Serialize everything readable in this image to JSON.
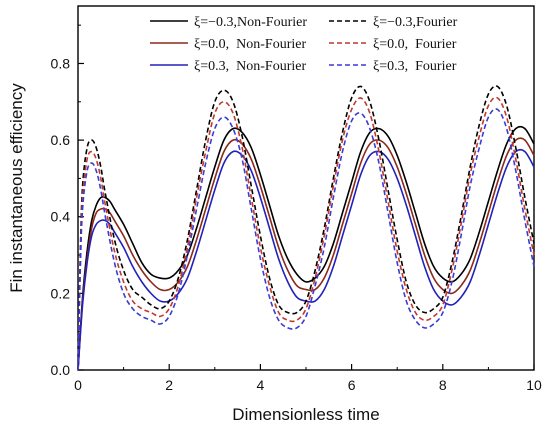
{
  "chart_data": {
    "type": "line",
    "xlabel": "Dimensionless time",
    "ylabel": "Fin instantaneous efficiency",
    "xlim": [
      0,
      10
    ],
    "ylim": [
      0,
      0.95
    ],
    "x_ticks": [
      "0",
      "2",
      "4",
      "6",
      "8",
      "10"
    ],
    "x_tick_values": [
      0,
      2,
      4,
      6,
      8,
      10
    ],
    "y_ticks": [
      "0.0",
      "0.2",
      "0.4",
      "0.6",
      "0.8"
    ],
    "y_tick_values": [
      0,
      0.2,
      0.4,
      0.6,
      0.8
    ],
    "grid": false,
    "legend_position": "top-right",
    "series": [
      {
        "name": "ξ=−0.3, Non-Fourier",
        "color": "#000000",
        "dash": "solid",
        "x": [
          0,
          0.1,
          0.2,
          0.3,
          0.4,
          0.5,
          0.6,
          0.7,
          0.8,
          1.0,
          1.2,
          1.4,
          1.6,
          1.8,
          2.0,
          2.2,
          2.4,
          2.6,
          2.8,
          3.0,
          3.2,
          3.4,
          3.6,
          3.8,
          4.0,
          4.2,
          4.4,
          4.6,
          4.8,
          5.0,
          5.2,
          5.4,
          5.6,
          5.8,
          6.0,
          6.2,
          6.4,
          6.6,
          6.8,
          7.0,
          7.2,
          7.4,
          7.6,
          7.8,
          8.0,
          8.2,
          8.4,
          8.6,
          8.8,
          9.0,
          9.2,
          9.4,
          9.6,
          9.8,
          10.0
        ],
        "y": [
          0.0,
          0.19,
          0.31,
          0.39,
          0.43,
          0.45,
          0.45,
          0.44,
          0.42,
          0.38,
          0.33,
          0.28,
          0.25,
          0.24,
          0.24,
          0.26,
          0.3,
          0.37,
          0.45,
          0.53,
          0.6,
          0.63,
          0.62,
          0.58,
          0.51,
          0.43,
          0.35,
          0.29,
          0.25,
          0.23,
          0.24,
          0.27,
          0.33,
          0.41,
          0.49,
          0.57,
          0.62,
          0.63,
          0.61,
          0.56,
          0.49,
          0.41,
          0.33,
          0.27,
          0.24,
          0.23,
          0.25,
          0.29,
          0.36,
          0.44,
          0.52,
          0.59,
          0.63,
          0.63,
          0.59
        ]
      },
      {
        "name": "ξ=0.0, Non-Fourier",
        "color": "#8b2a1a",
        "dash": "solid",
        "x": [
          0,
          0.1,
          0.2,
          0.3,
          0.4,
          0.5,
          0.6,
          0.7,
          0.8,
          1.0,
          1.2,
          1.4,
          1.6,
          1.8,
          2.0,
          2.2,
          2.4,
          2.6,
          2.8,
          3.0,
          3.2,
          3.4,
          3.6,
          3.8,
          4.0,
          4.2,
          4.4,
          4.6,
          4.8,
          5.0,
          5.2,
          5.4,
          5.6,
          5.8,
          6.0,
          6.2,
          6.4,
          6.6,
          6.8,
          7.0,
          7.2,
          7.4,
          7.6,
          7.8,
          8.0,
          8.2,
          8.4,
          8.6,
          8.8,
          9.0,
          9.2,
          9.4,
          9.6,
          9.8,
          10.0
        ],
        "y": [
          0.0,
          0.18,
          0.29,
          0.37,
          0.41,
          0.42,
          0.42,
          0.41,
          0.39,
          0.35,
          0.3,
          0.26,
          0.23,
          0.21,
          0.21,
          0.23,
          0.27,
          0.34,
          0.42,
          0.5,
          0.57,
          0.6,
          0.59,
          0.55,
          0.48,
          0.4,
          0.32,
          0.26,
          0.22,
          0.21,
          0.21,
          0.24,
          0.3,
          0.38,
          0.46,
          0.54,
          0.59,
          0.6,
          0.58,
          0.53,
          0.46,
          0.38,
          0.3,
          0.24,
          0.21,
          0.2,
          0.22,
          0.26,
          0.33,
          0.41,
          0.49,
          0.56,
          0.6,
          0.6,
          0.56
        ]
      },
      {
        "name": "ξ=0.3, Non-Fourier",
        "color": "#2222bb",
        "dash": "solid",
        "x": [
          0,
          0.1,
          0.2,
          0.3,
          0.4,
          0.5,
          0.6,
          0.7,
          0.8,
          1.0,
          1.2,
          1.4,
          1.6,
          1.8,
          2.0,
          2.2,
          2.4,
          2.6,
          2.8,
          3.0,
          3.2,
          3.4,
          3.6,
          3.8,
          4.0,
          4.2,
          4.4,
          4.6,
          4.8,
          5.0,
          5.2,
          5.4,
          5.6,
          5.8,
          6.0,
          6.2,
          6.4,
          6.6,
          6.8,
          7.0,
          7.2,
          7.4,
          7.6,
          7.8,
          8.0,
          8.2,
          8.4,
          8.6,
          8.8,
          9.0,
          9.2,
          9.4,
          9.6,
          9.8,
          10.0
        ],
        "y": [
          0.0,
          0.17,
          0.28,
          0.35,
          0.38,
          0.39,
          0.39,
          0.38,
          0.36,
          0.32,
          0.27,
          0.23,
          0.2,
          0.18,
          0.18,
          0.2,
          0.24,
          0.31,
          0.39,
          0.47,
          0.54,
          0.57,
          0.56,
          0.52,
          0.45,
          0.37,
          0.29,
          0.23,
          0.19,
          0.18,
          0.18,
          0.21,
          0.27,
          0.35,
          0.43,
          0.51,
          0.56,
          0.57,
          0.55,
          0.5,
          0.43,
          0.35,
          0.27,
          0.21,
          0.18,
          0.17,
          0.19,
          0.23,
          0.3,
          0.38,
          0.46,
          0.53,
          0.57,
          0.57,
          0.53
        ]
      },
      {
        "name": "ξ=−0.3, Fourier",
        "color": "#000000",
        "dash": "dashed",
        "x": [
          0,
          0.05,
          0.1,
          0.2,
          0.3,
          0.4,
          0.5,
          0.6,
          0.8,
          1.0,
          1.2,
          1.4,
          1.6,
          1.8,
          2.0,
          2.2,
          2.4,
          2.6,
          2.8,
          3.0,
          3.2,
          3.4,
          3.6,
          3.8,
          4.0,
          4.2,
          4.4,
          4.6,
          4.8,
          5.0,
          5.2,
          5.4,
          5.6,
          5.8,
          6.0,
          6.2,
          6.4,
          6.6,
          6.8,
          7.0,
          7.2,
          7.4,
          7.6,
          7.8,
          8.0,
          8.2,
          8.4,
          8.6,
          8.8,
          9.0,
          9.2,
          9.4,
          9.6,
          9.8,
          10.0
        ],
        "y": [
          0.0,
          0.3,
          0.48,
          0.58,
          0.6,
          0.58,
          0.53,
          0.46,
          0.34,
          0.26,
          0.21,
          0.19,
          0.17,
          0.16,
          0.18,
          0.24,
          0.34,
          0.47,
          0.6,
          0.7,
          0.73,
          0.7,
          0.61,
          0.48,
          0.35,
          0.24,
          0.17,
          0.15,
          0.15,
          0.18,
          0.26,
          0.37,
          0.5,
          0.62,
          0.71,
          0.74,
          0.7,
          0.6,
          0.47,
          0.34,
          0.23,
          0.17,
          0.15,
          0.16,
          0.19,
          0.28,
          0.4,
          0.53,
          0.64,
          0.72,
          0.74,
          0.69,
          0.58,
          0.45,
          0.33
        ]
      },
      {
        "name": "ξ=0.0, Fourier",
        "color": "#c0392b",
        "dash": "dashed",
        "x": [
          0,
          0.05,
          0.1,
          0.2,
          0.3,
          0.4,
          0.5,
          0.6,
          0.8,
          1.0,
          1.2,
          1.4,
          1.6,
          1.8,
          2.0,
          2.2,
          2.4,
          2.6,
          2.8,
          3.0,
          3.2,
          3.4,
          3.6,
          3.8,
          4.0,
          4.2,
          4.4,
          4.6,
          4.8,
          5.0,
          5.2,
          5.4,
          5.6,
          5.8,
          6.0,
          6.2,
          6.4,
          6.6,
          6.8,
          7.0,
          7.2,
          7.4,
          7.6,
          7.8,
          8.0,
          8.2,
          8.4,
          8.6,
          8.8,
          9.0,
          9.2,
          9.4,
          9.6,
          9.8,
          10.0
        ],
        "y": [
          0.0,
          0.28,
          0.45,
          0.55,
          0.57,
          0.55,
          0.5,
          0.43,
          0.31,
          0.23,
          0.18,
          0.16,
          0.15,
          0.14,
          0.16,
          0.22,
          0.32,
          0.45,
          0.57,
          0.67,
          0.7,
          0.67,
          0.58,
          0.45,
          0.32,
          0.22,
          0.15,
          0.13,
          0.13,
          0.16,
          0.24,
          0.35,
          0.48,
          0.6,
          0.68,
          0.71,
          0.67,
          0.57,
          0.44,
          0.31,
          0.21,
          0.15,
          0.13,
          0.14,
          0.17,
          0.26,
          0.38,
          0.51,
          0.61,
          0.69,
          0.71,
          0.66,
          0.55,
          0.42,
          0.3
        ]
      },
      {
        "name": "ξ=0.3, Fourier",
        "color": "#3b3bd6",
        "dash": "dashed",
        "x": [
          0,
          0.05,
          0.1,
          0.2,
          0.3,
          0.4,
          0.5,
          0.6,
          0.8,
          1.0,
          1.2,
          1.4,
          1.6,
          1.8,
          2.0,
          2.2,
          2.4,
          2.6,
          2.8,
          3.0,
          3.2,
          3.4,
          3.6,
          3.8,
          4.0,
          4.2,
          4.4,
          4.6,
          4.8,
          5.0,
          5.2,
          5.4,
          5.6,
          5.8,
          6.0,
          6.2,
          6.4,
          6.6,
          6.8,
          7.0,
          7.2,
          7.4,
          7.6,
          7.8,
          8.0,
          8.2,
          8.4,
          8.6,
          8.8,
          9.0,
          9.2,
          9.4,
          9.6,
          9.8,
          10.0
        ],
        "y": [
          0.0,
          0.26,
          0.42,
          0.52,
          0.54,
          0.52,
          0.47,
          0.4,
          0.28,
          0.2,
          0.16,
          0.14,
          0.13,
          0.12,
          0.14,
          0.2,
          0.3,
          0.42,
          0.54,
          0.63,
          0.66,
          0.63,
          0.55,
          0.42,
          0.29,
          0.19,
          0.13,
          0.11,
          0.11,
          0.14,
          0.22,
          0.32,
          0.45,
          0.57,
          0.65,
          0.67,
          0.63,
          0.54,
          0.41,
          0.28,
          0.18,
          0.13,
          0.11,
          0.12,
          0.15,
          0.23,
          0.35,
          0.48,
          0.58,
          0.66,
          0.68,
          0.63,
          0.52,
          0.39,
          0.27
        ]
      }
    ]
  },
  "legend": {
    "entries": [
      {
        "label": "ξ=−0.3,Non-Fourier",
        "color": "#000000",
        "dash": "solid"
      },
      {
        "label": "ξ=−0.3,Fourier",
        "color": "#000000",
        "dash": "dashed"
      },
      {
        "label": "ξ=0.0,  Non-Fourier",
        "color": "#8b2a1a",
        "dash": "solid"
      },
      {
        "label": "ξ=0.0,  Fourier",
        "color": "#c0392b",
        "dash": "dashed"
      },
      {
        "label": "ξ=0.3,  Non-Fourier",
        "color": "#2222bb",
        "dash": "solid"
      },
      {
        "label": "ξ=0.3,  Fourier",
        "color": "#3b3bd6",
        "dash": "dashed"
      }
    ]
  }
}
